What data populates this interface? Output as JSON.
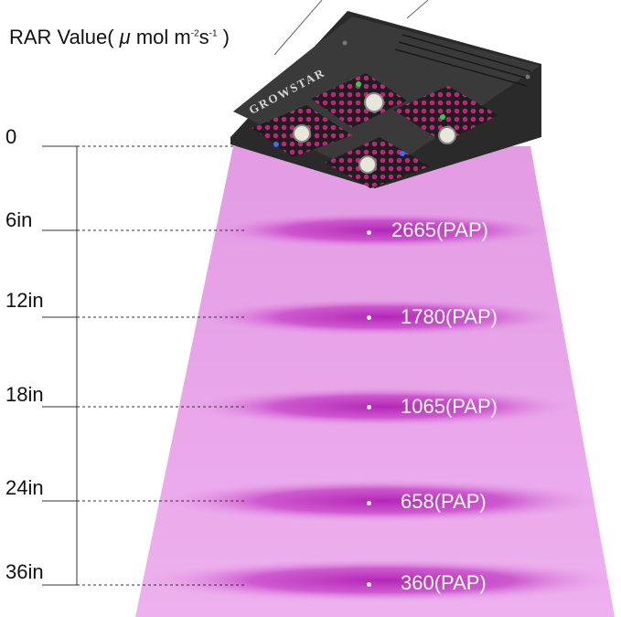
{
  "title": {
    "prefix": "RAR Value( ",
    "mu": "μ",
    "unit": " mol m",
    "sup1": "-2",
    "s": "s",
    "sup2": "-1",
    "suffix": " )"
  },
  "brand": "GROWSTAR",
  "levels": [
    {
      "distance": "0",
      "value": ""
    },
    {
      "distance": "6in",
      "value": "2665(PAP)"
    },
    {
      "distance": "12in",
      "value": "1780(PAP)"
    },
    {
      "distance": "18in",
      "value": "1065(PAP)"
    },
    {
      "distance": "24in",
      "value": "658(PAP)"
    },
    {
      "distance": "36in",
      "value": "360(PAP)"
    }
  ],
  "colors": {
    "beam": "#e9a3ea",
    "band": "#c837c8",
    "fixture": "#2a2a2a"
  }
}
